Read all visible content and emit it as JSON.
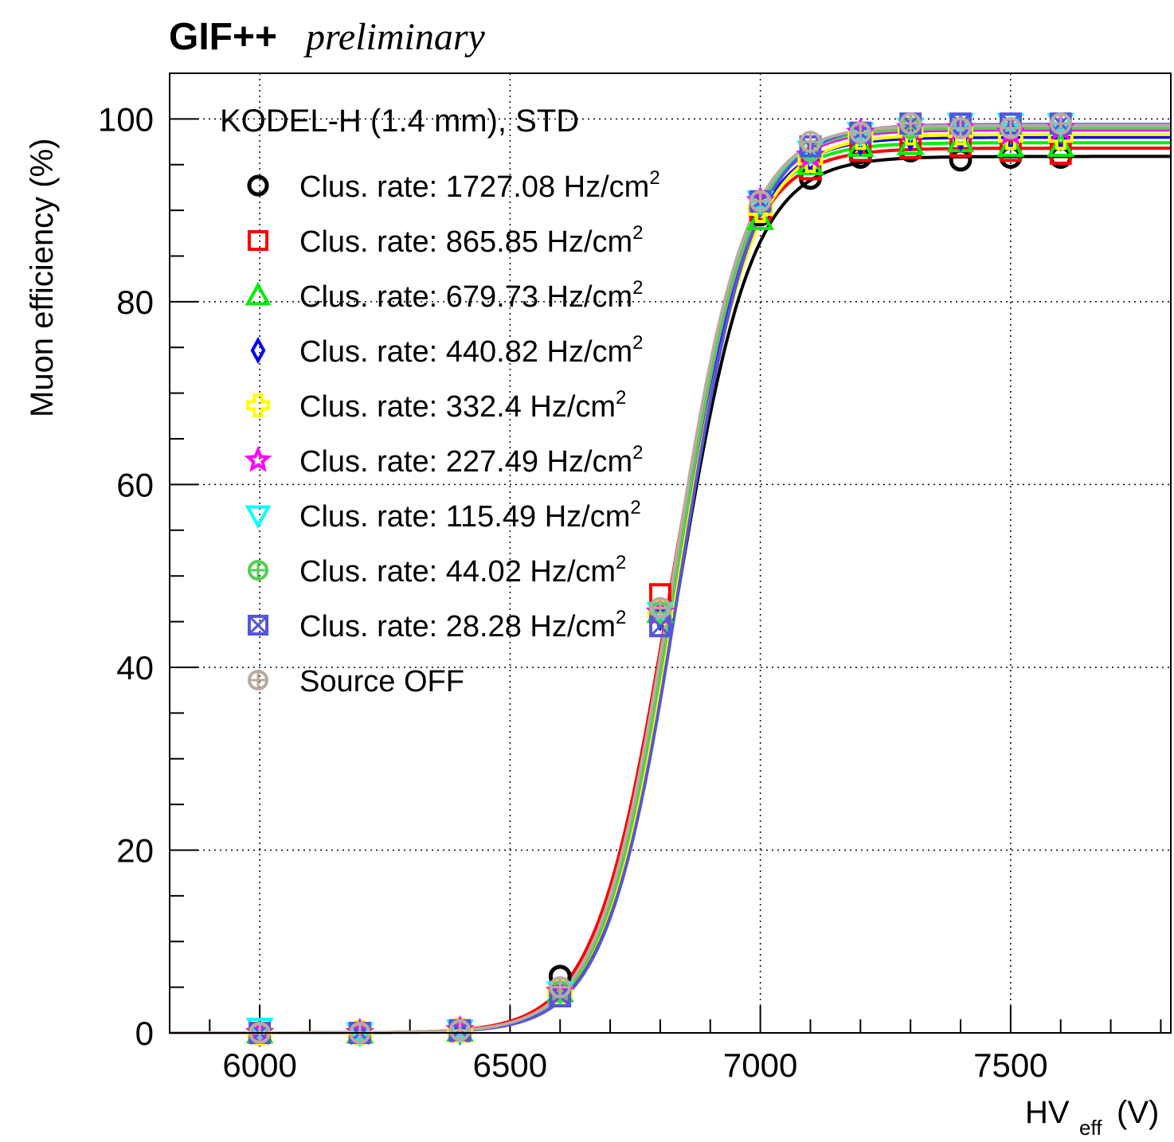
{
  "header": {
    "title": "GIF++",
    "subtitle": "preliminary"
  },
  "chart_data": {
    "type": "scatter",
    "title": "KODEL-H (1.4 mm), STD",
    "xlabel": "HV",
    "xlabel_sub": "eff",
    "xlabel_unit": "(V)",
    "ylabel": "Muon efficiency (%)",
    "xlim": [
      5820,
      7820
    ],
    "ylim": [
      0,
      105
    ],
    "x_ticks": [
      6000,
      6500,
      7000,
      7500
    ],
    "y_ticks": [
      0,
      20,
      40,
      60,
      80,
      100
    ],
    "grid": true,
    "legend_position": "top-left",
    "fit": "sigmoid",
    "x": [
      6000,
      6200,
      6400,
      6600,
      6800,
      7000,
      7100,
      7200,
      7300,
      7400,
      7500,
      7600
    ],
    "series": [
      {
        "name_prefix": "Clus. rate: 1727.08 Hz/cm",
        "name_sup": "2",
        "color": "#000000",
        "marker": "circle",
        "values": [
          0,
          0,
          0.2,
          6.2,
          46,
          89.5,
          93.5,
          95.8,
          96.5,
          95.5,
          95.8,
          95.8
        ],
        "fit": {
          "plateau": 95.9,
          "hv50": 6835,
          "lambda": 0.0135
        }
      },
      {
        "name_prefix": "Clus. rate: 865.85 Hz/cm",
        "name_sup": "2",
        "color": "#ff0000",
        "marker": "square",
        "values": [
          0,
          0,
          0.2,
          4.5,
          48,
          90,
          94.5,
          96.5,
          96.8,
          97,
          96.5,
          96.2
        ],
        "fit": {
          "plateau": 96.8,
          "hv50": 6820,
          "lambda": 0.0135
        }
      },
      {
        "name_prefix": "Clus. rate: 679.73 Hz/cm",
        "name_sup": "2",
        "color": "#00ee00",
        "marker": "triangle-up",
        "values": [
          0,
          0,
          0.2,
          4.5,
          46,
          89,
          95,
          97,
          97.2,
          97.5,
          97,
          97
        ],
        "fit": {
          "plateau": 97.4,
          "hv50": 6825,
          "lambda": 0.0138
        }
      },
      {
        "name_prefix": "Clus. rate: 440.82 Hz/cm",
        "name_sup": "2",
        "color": "#0000ff",
        "marker": "diamond",
        "values": [
          0,
          0,
          0.2,
          4.5,
          45.5,
          91,
          95.5,
          97.5,
          98,
          98,
          98,
          98
        ],
        "fit": {
          "plateau": 98.0,
          "hv50": 6830,
          "lambda": 0.0138
        }
      },
      {
        "name_prefix": "Clus. rate: 332.4 Hz/cm",
        "name_sup": "2",
        "color": "#ffff00",
        "marker": "cross",
        "values": [
          0,
          0,
          0.3,
          4.5,
          46,
          90,
          95.5,
          98,
          98.5,
          98.5,
          98,
          98
        ],
        "fit": {
          "plateau": 98.3,
          "hv50": 6835,
          "lambda": 0.0135
        }
      },
      {
        "name_prefix": "Clus. rate: 227.49 Hz/cm",
        "name_sup": "2",
        "color": "#ff00ff",
        "marker": "star",
        "values": [
          0,
          0,
          0.3,
          4.5,
          46,
          91,
          96,
          98.5,
          99,
          99,
          98.5,
          99
        ],
        "fit": {
          "plateau": 98.8,
          "hv50": 6830,
          "lambda": 0.0138
        }
      },
      {
        "name_prefix": "Clus. rate: 115.49 Hz/cm",
        "name_sup": "2",
        "color": "#00ffff",
        "marker": "triangle-down",
        "values": [
          0.5,
          0,
          0.3,
          4.5,
          46,
          91,
          96.5,
          98.5,
          99,
          99.5,
          99.5,
          99.5
        ],
        "fit": {
          "plateau": 99.2,
          "hv50": 6830,
          "lambda": 0.0138
        }
      },
      {
        "name_prefix": "Clus. rate: 44.02 Hz/cm",
        "name_sup": "2",
        "color": "#55cc55",
        "marker": "circle-cross",
        "values": [
          0,
          0,
          0.3,
          4.5,
          46,
          91,
          96.5,
          98.5,
          99,
          99,
          99,
          99.5
        ],
        "fit": {
          "plateau": 99.0,
          "hv50": 6830,
          "lambda": 0.0138
        }
      },
      {
        "name_prefix": "Clus. rate: 28.28 Hz/cm",
        "name_sup": "2",
        "color": "#5555dd",
        "marker": "square-x",
        "values": [
          0,
          0,
          0.3,
          4,
          44.5,
          91,
          97,
          98.5,
          99.5,
          99.5,
          99.5,
          99.5
        ],
        "fit": {
          "plateau": 99.4,
          "hv50": 6840,
          "lambda": 0.0138
        }
      },
      {
        "name_prefix": "Source OFF",
        "name_sup": "",
        "color": "#bbaaa0",
        "marker": "circle-plus",
        "values": [
          0,
          0,
          0.3,
          5,
          46.5,
          91,
          97.5,
          98.5,
          99.5,
          99,
          99,
          99.5
        ],
        "fit": {
          "plateau": 99.3,
          "hv50": 6825,
          "lambda": 0.0138
        }
      }
    ]
  }
}
